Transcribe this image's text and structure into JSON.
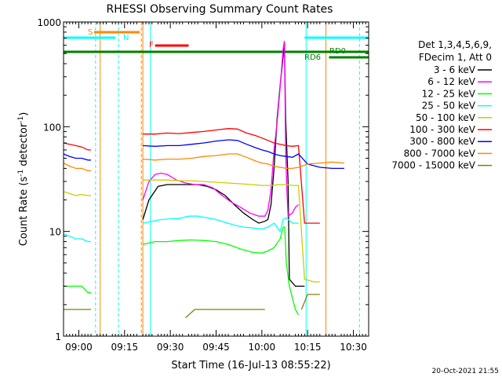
{
  "chart_data": {
    "type": "line",
    "title": "RHESSI Observing Summary Count Rates",
    "xlabel": "Start Time (16-Jul-13 08:55:22)",
    "ylabel_main": "Count Rate (s",
    "ylabel_sup1": "-1",
    "ylabel_mid": " detector",
    "ylabel_sup2": "-1",
    "ylabel_end": ")",
    "y_scale": "log",
    "ylim": [
      1,
      1000
    ],
    "xlim_min": [
      0,
      100
    ],
    "x_tick_labels": [
      {
        "t": 5,
        "label": "09:00"
      },
      {
        "t": 20,
        "label": "09:15"
      },
      {
        "t": 35,
        "label": "09:30"
      },
      {
        "t": 50,
        "label": "09:45"
      },
      {
        "t": 65,
        "label": "10:00"
      },
      {
        "t": 80,
        "label": "10:15"
      },
      {
        "t": 95,
        "label": "10:30"
      }
    ],
    "y_tick_labels": [
      {
        "v": 1,
        "label": "1"
      },
      {
        "v": 10,
        "label": "10"
      },
      {
        "v": 100,
        "label": "100"
      },
      {
        "v": 1000,
        "label": "1000"
      }
    ],
    "legend_header": [
      "Det 1,3,4,5,6,9,",
      "FDecim 1, Att 0"
    ],
    "series": [
      {
        "name": "3 - 6 keV",
        "color": "#000000",
        "points": [
          [
            26,
            13
          ],
          [
            28,
            20
          ],
          [
            31,
            27
          ],
          [
            34,
            28
          ],
          [
            38,
            28
          ],
          [
            41,
            28
          ],
          [
            44,
            28
          ],
          [
            47,
            27
          ],
          [
            50,
            25
          ],
          [
            53,
            22
          ],
          [
            56,
            18
          ],
          [
            59,
            15
          ],
          [
            62,
            13
          ],
          [
            64,
            12
          ],
          [
            66,
            12.5
          ],
          [
            67,
            13
          ],
          [
            68,
            18
          ],
          [
            69,
            40
          ],
          [
            70,
            120
          ],
          [
            71,
            250
          ],
          [
            72,
            480
          ],
          [
            72.4,
            640
          ],
          [
            72.8,
            120
          ],
          [
            73.2,
            60
          ],
          [
            73.6,
            30
          ],
          [
            74,
            3.5
          ],
          [
            76,
            3
          ],
          [
            77,
            3
          ],
          [
            78,
            3
          ],
          [
            79,
            3
          ]
        ]
      },
      {
        "name": "6 - 12 keV",
        "color": "#ff00ff",
        "points": [
          [
            26,
            20
          ],
          [
            28,
            30
          ],
          [
            30,
            35
          ],
          [
            32,
            36
          ],
          [
            34,
            35
          ],
          [
            37,
            31
          ],
          [
            40,
            29
          ],
          [
            43,
            28
          ],
          [
            46,
            28
          ],
          [
            49,
            26
          ],
          [
            52,
            22
          ],
          [
            55,
            19
          ],
          [
            58,
            17
          ],
          [
            61,
            15
          ],
          [
            64,
            14
          ],
          [
            66,
            14
          ],
          [
            67,
            16
          ],
          [
            68,
            25
          ],
          [
            69,
            60
          ],
          [
            70,
            110
          ],
          [
            71,
            240
          ],
          [
            72,
            560
          ],
          [
            72.4,
            660
          ],
          [
            72.8,
            60
          ],
          [
            73.2,
            25
          ],
          [
            73.6,
            14
          ],
          [
            75,
            15
          ],
          [
            76,
            17
          ],
          [
            77,
            18
          ]
        ]
      },
      {
        "name": "12 - 25 keV",
        "color": "#00ff00",
        "points": [
          [
            0,
            3
          ],
          [
            2,
            3
          ],
          [
            4,
            3
          ],
          [
            6,
            3
          ],
          [
            8,
            2.6
          ],
          [
            9,
            2.6
          ],
          [
            26,
            7.5
          ],
          [
            30,
            8
          ],
          [
            34,
            8
          ],
          [
            38,
            8.2
          ],
          [
            42,
            8.3
          ],
          [
            46,
            8.2
          ],
          [
            50,
            8
          ],
          [
            54,
            7.5
          ],
          [
            58,
            6.8
          ],
          [
            62,
            6.3
          ],
          [
            65,
            6.2
          ],
          [
            67,
            6.5
          ],
          [
            69,
            7
          ],
          [
            71,
            8.5
          ],
          [
            72,
            11
          ],
          [
            72.5,
            11
          ],
          [
            73,
            5
          ],
          [
            74,
            3
          ],
          [
            76,
            1.8
          ],
          [
            77,
            1.6
          ]
        ]
      },
      {
        "name": "25 - 50 keV",
        "color": "#00ffff",
        "points": [
          [
            0,
            9.5
          ],
          [
            2,
            9
          ],
          [
            4,
            8.5
          ],
          [
            6,
            8.5
          ],
          [
            8,
            8
          ],
          [
            9,
            8
          ],
          [
            26,
            12
          ],
          [
            29,
            12.5
          ],
          [
            32,
            13
          ],
          [
            35,
            13.2
          ],
          [
            38,
            13.3
          ],
          [
            41,
            14
          ],
          [
            44,
            14
          ],
          [
            47,
            13.5
          ],
          [
            50,
            13
          ],
          [
            53,
            12.2
          ],
          [
            56,
            11.5
          ],
          [
            59,
            11
          ],
          [
            62,
            10.8
          ],
          [
            65,
            10.5
          ],
          [
            67,
            11
          ],
          [
            69,
            12
          ],
          [
            71,
            10
          ],
          [
            72,
            13
          ],
          [
            73,
            13.5
          ],
          [
            75,
            12
          ],
          [
            77,
            12
          ]
        ]
      },
      {
        "name": "50 - 100 keV",
        "color": "#cccc00",
        "points": [
          [
            0,
            24
          ],
          [
            2,
            23
          ],
          [
            4,
            22
          ],
          [
            6,
            22.5
          ],
          [
            8,
            22
          ],
          [
            9,
            22
          ],
          [
            26,
            31
          ],
          [
            30,
            31
          ],
          [
            34,
            31
          ],
          [
            38,
            30.5
          ],
          [
            42,
            30.5
          ],
          [
            46,
            30
          ],
          [
            50,
            29.5
          ],
          [
            54,
            29
          ],
          [
            58,
            28.5
          ],
          [
            62,
            28
          ],
          [
            65,
            27.5
          ],
          [
            68,
            27.5
          ],
          [
            71,
            28
          ],
          [
            73,
            28
          ],
          [
            75,
            27.5
          ],
          [
            77,
            27.5
          ],
          [
            79,
            3.5
          ],
          [
            82,
            3.3
          ],
          [
            84,
            3.3
          ]
        ]
      },
      {
        "name": "100 - 300 keV",
        "color": "#ff0000",
        "points": [
          [
            0,
            70
          ],
          [
            2,
            68
          ],
          [
            4,
            66
          ],
          [
            6,
            64
          ],
          [
            8,
            60
          ],
          [
            9,
            60
          ],
          [
            26,
            85
          ],
          [
            30,
            85
          ],
          [
            34,
            87
          ],
          [
            38,
            86
          ],
          [
            42,
            88
          ],
          [
            46,
            90
          ],
          [
            50,
            93
          ],
          [
            54,
            96
          ],
          [
            57,
            95
          ],
          [
            60,
            87
          ],
          [
            63,
            82
          ],
          [
            65,
            78
          ],
          [
            67,
            74
          ],
          [
            69,
            70
          ],
          [
            71,
            68
          ],
          [
            73,
            66
          ],
          [
            75,
            65
          ],
          [
            77,
            66
          ],
          [
            79,
            12
          ],
          [
            82,
            12
          ],
          [
            84,
            12
          ]
        ]
      },
      {
        "name": "300 - 800 keV",
        "color": "#0000ff",
        "points": [
          [
            0,
            55
          ],
          [
            2,
            52
          ],
          [
            4,
            50
          ],
          [
            6,
            50
          ],
          [
            8,
            48
          ],
          [
            9,
            48
          ],
          [
            26,
            66
          ],
          [
            30,
            65
          ],
          [
            34,
            66
          ],
          [
            38,
            66
          ],
          [
            42,
            68
          ],
          [
            46,
            70
          ],
          [
            50,
            73
          ],
          [
            54,
            75
          ],
          [
            57,
            74
          ],
          [
            60,
            68
          ],
          [
            63,
            63
          ],
          [
            65,
            60
          ],
          [
            67,
            58
          ],
          [
            69,
            55
          ],
          [
            71,
            53
          ],
          [
            73,
            52
          ],
          [
            75,
            51
          ],
          [
            77,
            55
          ],
          [
            80,
            44
          ],
          [
            84,
            41
          ],
          [
            88,
            40
          ],
          [
            92,
            40
          ]
        ]
      },
      {
        "name": "800 - 7000 keV",
        "color": "#ff8800",
        "points": [
          [
            0,
            45
          ],
          [
            2,
            42
          ],
          [
            4,
            40
          ],
          [
            6,
            40
          ],
          [
            8,
            38
          ],
          [
            9,
            38
          ],
          [
            26,
            49
          ],
          [
            30,
            48
          ],
          [
            34,
            49
          ],
          [
            38,
            49
          ],
          [
            42,
            50
          ],
          [
            46,
            52
          ],
          [
            50,
            53
          ],
          [
            54,
            55
          ],
          [
            57,
            55
          ],
          [
            60,
            51
          ],
          [
            63,
            47
          ],
          [
            65,
            45
          ],
          [
            67,
            44
          ],
          [
            69,
            42
          ],
          [
            71,
            41
          ],
          [
            73,
            40
          ],
          [
            75,
            40
          ],
          [
            77,
            41
          ],
          [
            80,
            44
          ],
          [
            84,
            45
          ],
          [
            88,
            46
          ],
          [
            92,
            45
          ]
        ]
      },
      {
        "name": "7000 - 15000 keV",
        "color": "#808000",
        "points": [
          [
            0,
            1.8
          ],
          [
            2,
            1.8
          ],
          [
            4,
            1.8
          ],
          [
            6,
            1.8
          ],
          [
            8,
            1.8
          ],
          [
            9,
            1.8
          ],
          [
            40,
            1.5
          ],
          [
            43,
            1.8
          ],
          [
            46,
            1.8
          ],
          [
            49,
            1.8
          ],
          [
            52,
            1.8
          ],
          [
            55,
            1.8
          ],
          [
            58,
            1.8
          ],
          [
            61,
            1.8
          ],
          [
            64,
            1.8
          ],
          [
            66,
            1.8
          ],
          [
            78,
            1.8
          ],
          [
            80,
            2.5
          ],
          [
            82,
            2.5
          ],
          [
            84,
            2.5
          ]
        ]
      }
    ],
    "flags": [
      {
        "label": "S",
        "color": "#ff8800",
        "x0": 10,
        "x1": 25
      },
      {
        "label": "N",
        "color": "#00ffff",
        "x0": 0,
        "x1": 17
      },
      {
        "label": "N",
        "color": "#00ffff",
        "x0": 79,
        "x1": 100
      },
      {
        "label": "F",
        "color": "#ff0000",
        "x0": 30,
        "x1": 41
      },
      {
        "label": "RD0",
        "color": "#008000",
        "x0": 0,
        "x1": 100
      },
      {
        "label": "RD6",
        "color": "#008000",
        "x0": 87,
        "x1": 100
      }
    ],
    "footer_date": "20-Oct-2021 21:55"
  }
}
